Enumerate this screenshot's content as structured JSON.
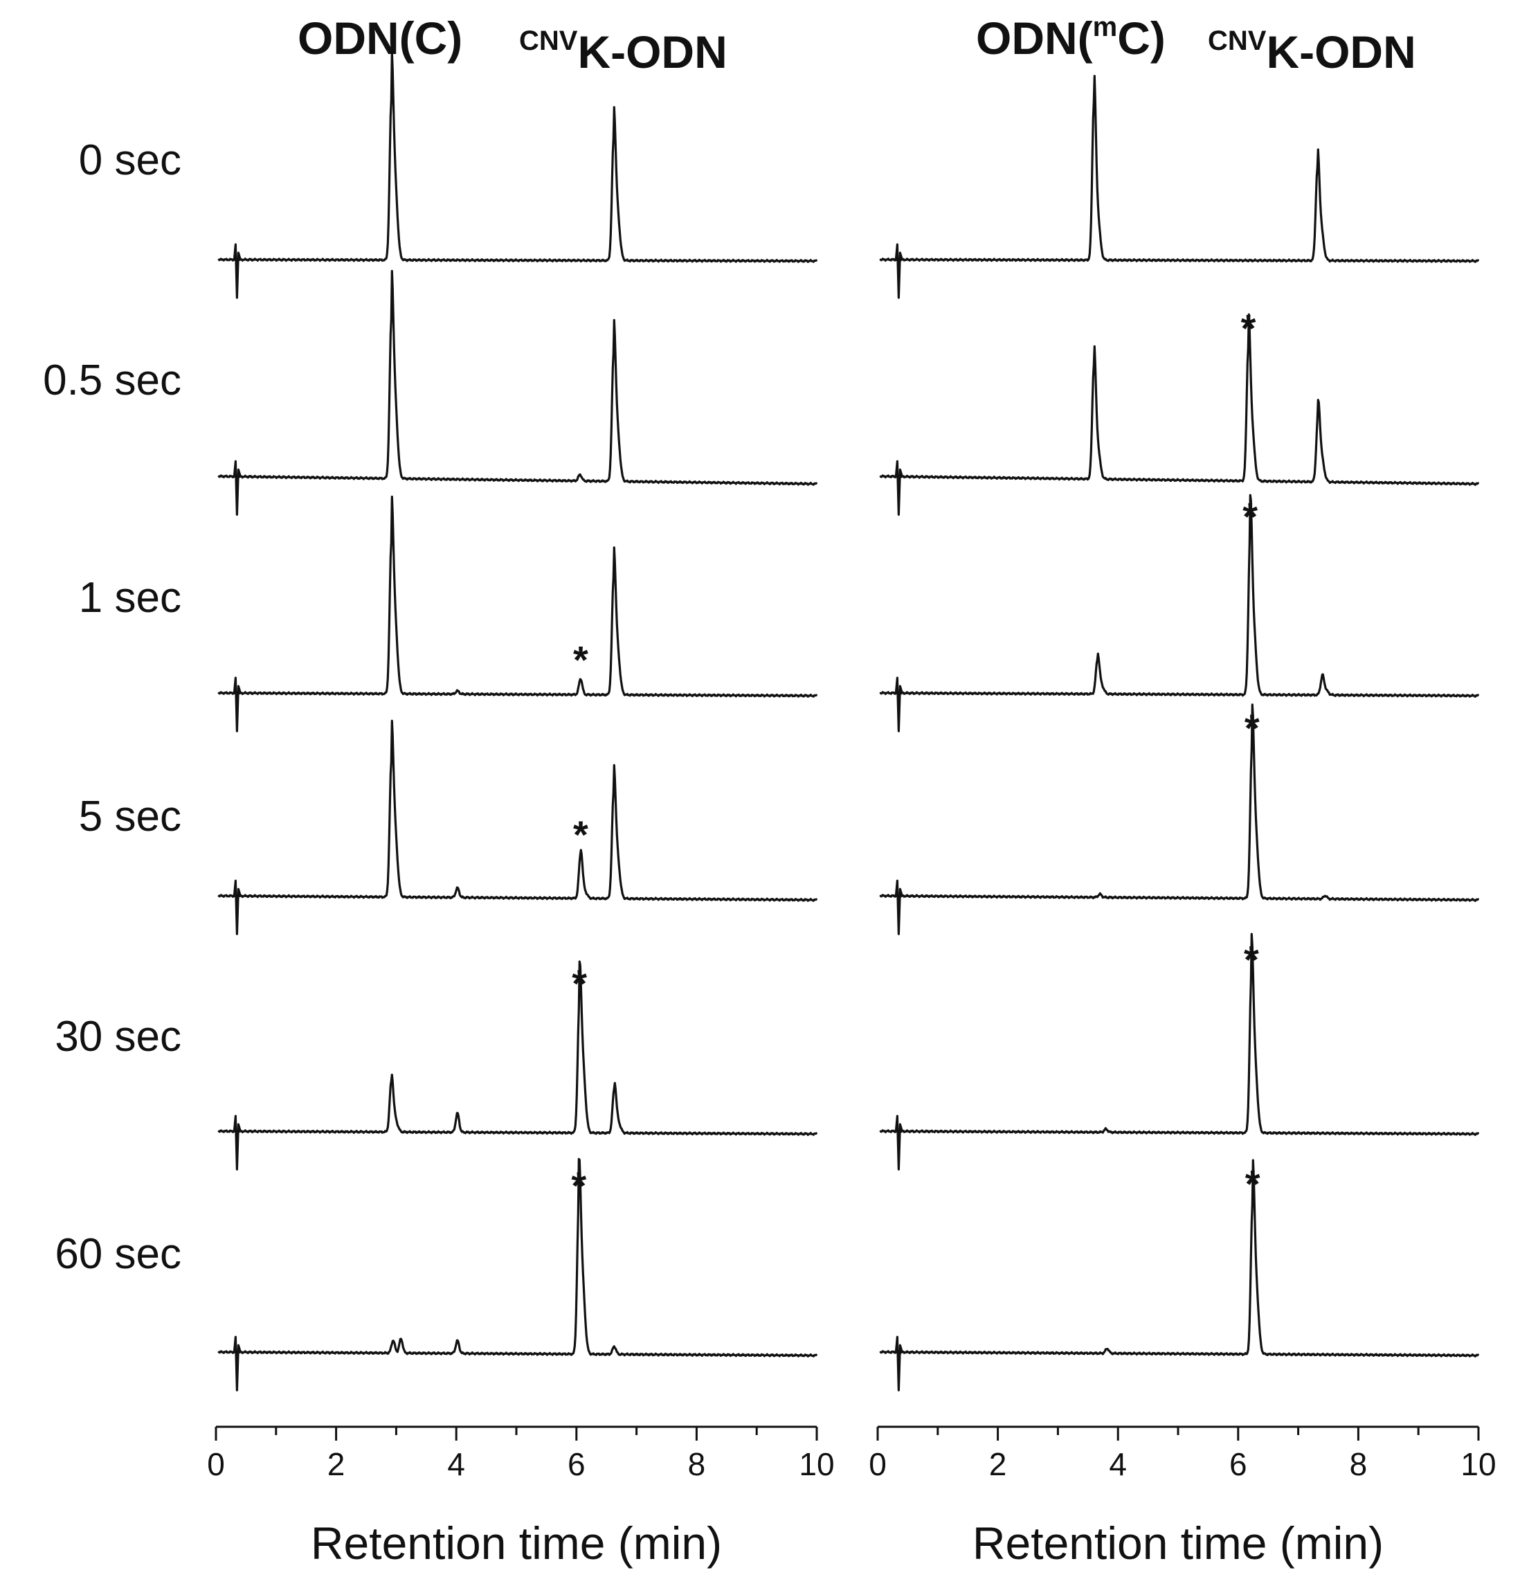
{
  "chart_data": [
    {
      "type": "line",
      "panel": "left",
      "header": [
        {
          "main": "ODN(C)"
        },
        {
          "sup": "CNV",
          "main": "K-ODN"
        }
      ],
      "xlabel": "Retention time (min)",
      "xlim": [
        0,
        10
      ],
      "xticks": [
        "0",
        "2",
        "4",
        "6",
        "8",
        "10"
      ],
      "rows": [
        {
          "time_label": "0 sec",
          "peaks": [
            {
              "x": 2.92,
              "height": 1.0,
              "shoulder": 0.55
            },
            {
              "x": 6.62,
              "height": 0.77,
              "shoulder": 0.45
            }
          ],
          "asterisk_at": null
        },
        {
          "time_label": "0.5 sec",
          "peaks": [
            {
              "x": 2.92,
              "height": 1.0,
              "shoulder": 0.55
            },
            {
              "x": 6.06,
              "height": 0.04,
              "shoulder": 0
            },
            {
              "x": 6.62,
              "height": 0.81,
              "shoulder": 0.45
            }
          ],
          "asterisk_at": null
        },
        {
          "time_label": "1 sec",
          "peaks": [
            {
              "x": 2.92,
              "height": 0.95,
              "shoulder": 0.55
            },
            {
              "x": 4.02,
              "height": 0.02,
              "shoulder": 0
            },
            {
              "x": 6.07,
              "height": 0.1,
              "shoulder": 0
            },
            {
              "x": 6.62,
              "height": 0.74,
              "shoulder": 0.45
            }
          ],
          "asterisk_at": 6.07
        },
        {
          "time_label": "5 sec",
          "peaks": [
            {
              "x": 2.92,
              "height": 0.85,
              "shoulder": 0.55
            },
            {
              "x": 4.02,
              "height": 0.06,
              "shoulder": 0
            },
            {
              "x": 6.07,
              "height": 0.28,
              "shoulder": 0.2
            },
            {
              "x": 6.62,
              "height": 0.67,
              "shoulder": 0.45
            }
          ],
          "asterisk_at": 6.07
        },
        {
          "time_label": "30 sec",
          "peaks": [
            {
              "x": 2.92,
              "height": 0.32,
              "shoulder": 0.3
            },
            {
              "x": 4.02,
              "height": 0.12,
              "shoulder": 0
            },
            {
              "x": 6.05,
              "height": 0.82,
              "shoulder": 0.55
            },
            {
              "x": 6.63,
              "height": 0.28,
              "shoulder": 0.3
            }
          ],
          "asterisk_at": 6.05
        },
        {
          "time_label": "60 sec",
          "peaks": [
            {
              "x": 2.95,
              "height": 0.08,
              "shoulder": 0
            },
            {
              "x": 3.08,
              "height": 0.09,
              "shoulder": 0
            },
            {
              "x": 4.02,
              "height": 0.08,
              "shoulder": 0
            },
            {
              "x": 6.04,
              "height": 0.94,
              "shoulder": 0.55
            },
            {
              "x": 6.63,
              "height": 0.05,
              "shoulder": 0
            }
          ],
          "asterisk_at": 6.04
        }
      ]
    },
    {
      "type": "line",
      "panel": "right",
      "header": [
        {
          "main_pre": "ODN(",
          "sup": "m",
          "main": "C)"
        },
        {
          "sup": "CNV",
          "main": "K-ODN"
        }
      ],
      "xlabel": "Retention time (min)",
      "xlim": [
        0,
        10
      ],
      "xticks": [
        "0",
        "2",
        "4",
        "6",
        "8",
        "10"
      ],
      "rows": [
        {
          "time_label": "0 sec",
          "peaks": [
            {
              "x": 3.6,
              "height": 1.0,
              "shoulder": 0.32
            },
            {
              "x": 7.32,
              "height": 0.58,
              "shoulder": 0.4
            }
          ],
          "asterisk_at": null
        },
        {
          "time_label": "0.5 sec",
          "peaks": [
            {
              "x": 3.6,
              "height": 0.72,
              "shoulder": 0.32
            },
            {
              "x": 6.17,
              "height": 0.84,
              "shoulder": 0.45
            },
            {
              "x": 7.33,
              "height": 0.42,
              "shoulder": 0.4
            }
          ],
          "asterisk_at": 6.17
        },
        {
          "time_label": "1 sec",
          "peaks": [
            {
              "x": 3.66,
              "height": 0.22,
              "shoulder": 0.3
            },
            {
              "x": 6.2,
              "height": 1.0,
              "shoulder": 0.45
            },
            {
              "x": 7.4,
              "height": 0.11,
              "shoulder": 0.3
            }
          ],
          "asterisk_at": 6.2
        },
        {
          "time_label": "5 sec",
          "peaks": [
            {
              "x": 3.7,
              "height": 0.02,
              "shoulder": 0
            },
            {
              "x": 6.23,
              "height": 0.95,
              "shoulder": 0.5
            },
            {
              "x": 7.45,
              "height": 0.02,
              "shoulder": 0
            }
          ],
          "asterisk_at": 6.23
        },
        {
          "time_label": "30 sec",
          "peaks": [
            {
              "x": 3.8,
              "height": 0.02,
              "shoulder": 0
            },
            {
              "x": 6.22,
              "height": 0.97,
              "shoulder": 0.5
            }
          ],
          "asterisk_at": 6.22
        },
        {
          "time_label": "60 sec",
          "peaks": [
            {
              "x": 3.82,
              "height": 0.03,
              "shoulder": 0
            },
            {
              "x": 6.24,
              "height": 0.95,
              "shoulder": 0.5
            }
          ],
          "asterisk_at": 6.24
        }
      ]
    }
  ],
  "asterisk": "*"
}
